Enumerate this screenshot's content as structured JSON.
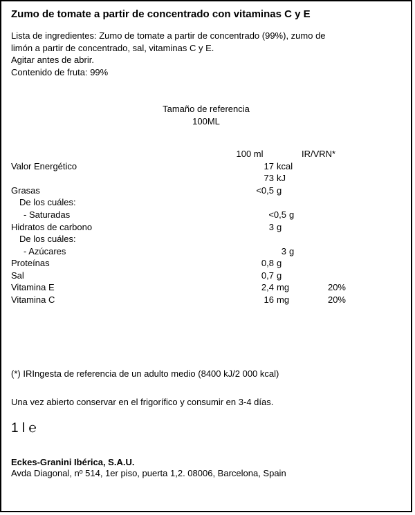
{
  "title": "Zumo de tomate a partir de concentrado con vitaminas C y E",
  "ingredients": {
    "line1": "Lista de ingredientes: Zumo de tomate a partir de concentrado (99%), zumo de",
    "line2": "limón a partir de concentrado, sal, vitaminas C y E.",
    "line3": "Agitar antes de abrir.",
    "line4": "Contenido de fruta: 99%"
  },
  "reference": {
    "label": "Tamaño de referencia",
    "size": "100ML"
  },
  "header": {
    "col1": "100 ml",
    "col2": "IR/VRN*"
  },
  "rows": [
    {
      "label": "Valor  Energético",
      "val": "17",
      "unit": "kcal",
      "pct": ""
    },
    {
      "label": "",
      "val": "73",
      "unit": "kJ",
      "pct": ""
    },
    {
      "label": "Grasas",
      "val": "<0,5",
      "unit": "g",
      "pct": ""
    },
    {
      "label": "De los cuáles:",
      "val": "",
      "unit": "",
      "pct": "",
      "indent": 1
    },
    {
      "label": "- Saturadas",
      "val": "<0,5",
      "unit": "g",
      "pct": "",
      "indent": 2
    },
    {
      "label": "Hidratos  de  carbono",
      "val": "3",
      "unit": "g",
      "pct": ""
    },
    {
      "label": "De los cuáles:",
      "val": "",
      "unit": "",
      "pct": "",
      "indent": 1
    },
    {
      "label": "- Azúcares",
      "val": "3",
      "unit": "g",
      "pct": "",
      "indent": 2
    },
    {
      "label": "Proteínas",
      "val": "0,8",
      "unit": "g",
      "pct": ""
    },
    {
      "label": "Sal",
      "val": "0,7",
      "unit": "g",
      "pct": ""
    },
    {
      "label": "Vitamina  E",
      "val": "2,4",
      "unit": "mg",
      "pct": "20%"
    },
    {
      "label": "Vitamina  C",
      "val": "16",
      "unit": "mg",
      "pct": "20%"
    }
  ],
  "footnote": "(*) IRIngesta de referencia de un adulto medio (8400 kJ/2 000 kcal)",
  "storage": "Una vez abierto conservar en el frigorífico y consumir en 3-4 días.",
  "volume": "1 l ℮",
  "company": "Eckes-Granini Ibérica, S.A.U.",
  "address": "Avda Diagonal, nº 514, 1er piso, puerta 1,2. 08006, Barcelona, Spain"
}
